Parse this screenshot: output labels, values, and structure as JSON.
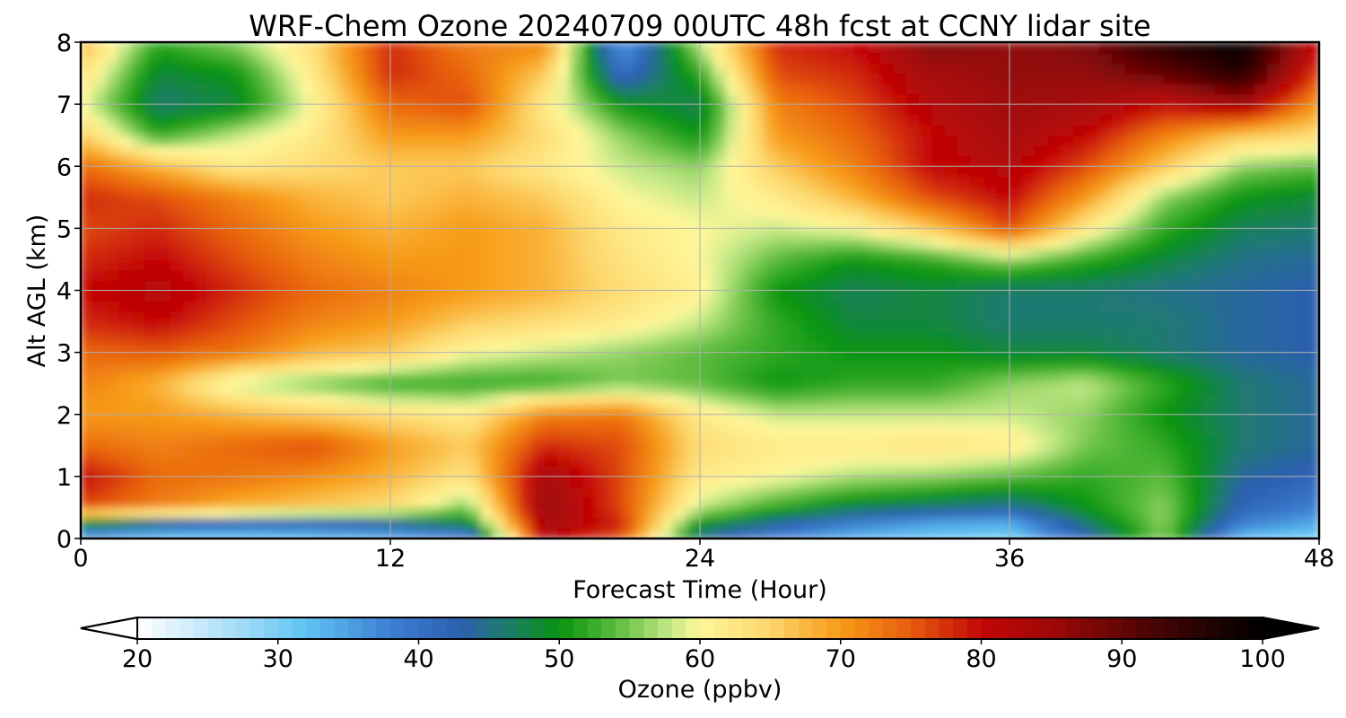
{
  "chart_data": {
    "type": "heatmap",
    "title": "WRF-Chem Ozone  20240709 00UTC 48h fcst at CCNY lidar site",
    "xlabel": "Forecast Time (Hour)",
    "ylabel": "Alt AGL (km)",
    "xlim": [
      0,
      48
    ],
    "ylim": [
      0,
      8
    ],
    "xticks": [
      0,
      12,
      24,
      36,
      48
    ],
    "yticks": [
      0,
      1,
      2,
      3,
      4,
      5,
      6,
      7,
      8
    ],
    "grid": true,
    "x": [
      0,
      3,
      6,
      9,
      12,
      15,
      18,
      21,
      24,
      27,
      30,
      33,
      36,
      39,
      42,
      45,
      48
    ],
    "y": [
      0,
      0.25,
      0.5,
      1,
      1.5,
      2,
      2.5,
      3,
      3.5,
      4,
      4.5,
      5,
      5.5,
      6,
      6.5,
      7,
      7.5,
      8
    ],
    "z": [
      [
        32,
        30,
        30,
        31,
        32,
        36,
        82,
        75,
        44,
        36,
        33,
        31,
        30,
        42,
        55,
        32,
        30
      ],
      [
        50,
        44,
        42,
        42,
        44,
        48,
        84,
        78,
        50,
        44,
        38,
        35,
        34,
        46,
        56,
        38,
        34
      ],
      [
        76,
        72,
        68,
        66,
        64,
        55,
        86,
        76,
        58,
        52,
        48,
        46,
        44,
        50,
        56,
        42,
        38
      ],
      [
        80,
        74,
        73,
        71,
        68,
        63,
        84,
        76,
        62,
        60,
        57,
        56,
        54,
        52,
        54,
        44,
        42
      ],
      [
        74,
        72,
        74,
        76,
        70,
        66,
        78,
        76,
        64,
        62,
        62,
        63,
        62,
        55,
        52,
        46,
        44
      ],
      [
        70,
        70,
        68,
        66,
        64,
        62,
        72,
        73,
        62,
        58,
        58,
        58,
        58,
        56,
        50,
        46,
        44
      ],
      [
        72,
        68,
        58,
        55,
        52,
        52,
        52,
        55,
        54,
        50,
        52,
        52,
        56,
        58,
        52,
        46,
        44
      ],
      [
        74,
        75,
        73,
        68,
        66,
        60,
        58,
        56,
        54,
        52,
        50,
        50,
        48,
        48,
        46,
        44,
        43
      ],
      [
        78,
        80,
        76,
        72,
        70,
        66,
        64,
        62,
        58,
        52,
        48,
        48,
        46,
        46,
        46,
        44,
        43
      ],
      [
        80,
        82,
        78,
        74,
        72,
        70,
        68,
        64,
        61,
        50,
        47,
        48,
        46,
        46,
        45,
        44,
        43
      ],
      [
        78,
        80,
        76,
        72,
        70,
        70,
        68,
        63,
        60,
        54,
        50,
        52,
        56,
        52,
        48,
        45,
        44
      ],
      [
        76,
        78,
        74,
        70,
        68,
        70,
        68,
        62,
        60,
        58,
        60,
        66,
        76,
        62,
        52,
        47,
        46
      ],
      [
        78,
        76,
        72,
        68,
        66,
        68,
        66,
        60,
        58,
        62,
        68,
        76,
        80,
        70,
        56,
        50,
        48
      ],
      [
        74,
        68,
        62,
        64,
        66,
        66,
        62,
        58,
        56,
        66,
        72,
        80,
        82,
        76,
        66,
        56,
        54
      ],
      [
        66,
        52,
        58,
        62,
        70,
        70,
        64,
        56,
        50,
        70,
        74,
        80,
        84,
        80,
        72,
        66,
        64
      ],
      [
        60,
        46,
        48,
        60,
        74,
        76,
        62,
        50,
        47,
        72,
        76,
        82,
        85,
        84,
        80,
        84,
        70
      ],
      [
        64,
        48,
        50,
        62,
        78,
        74,
        66,
        40,
        52,
        76,
        78,
        84,
        86,
        86,
        90,
        96,
        76
      ],
      [
        68,
        52,
        56,
        64,
        78,
        72,
        72,
        34,
        58,
        78,
        80,
        88,
        86,
        88,
        96,
        100,
        80
      ]
    ],
    "colorbar": {
      "label": "Ozone  (ppbv)",
      "min": 20,
      "max": 100,
      "ticks": [
        20,
        30,
        40,
        50,
        60,
        70,
        80,
        90,
        100
      ],
      "extend": "both",
      "stops": [
        {
          "v": 20,
          "c": "#ffffff"
        },
        {
          "v": 27,
          "c": "#a8ddf8"
        },
        {
          "v": 32,
          "c": "#5fc3f2"
        },
        {
          "v": 38,
          "c": "#3d7fd2"
        },
        {
          "v": 43,
          "c": "#2c5fb0"
        },
        {
          "v": 46,
          "c": "#1f7a72"
        },
        {
          "v": 50,
          "c": "#079410"
        },
        {
          "v": 54,
          "c": "#5bbb3c"
        },
        {
          "v": 58,
          "c": "#c8ea8a"
        },
        {
          "v": 60,
          "c": "#fff79a"
        },
        {
          "v": 65,
          "c": "#fdd66c"
        },
        {
          "v": 70,
          "c": "#f79a16"
        },
        {
          "v": 75,
          "c": "#e65c0e"
        },
        {
          "v": 80,
          "c": "#c20606"
        },
        {
          "v": 85,
          "c": "#a00808"
        },
        {
          "v": 92,
          "c": "#4a0505"
        },
        {
          "v": 100,
          "c": "#000000"
        }
      ]
    }
  }
}
